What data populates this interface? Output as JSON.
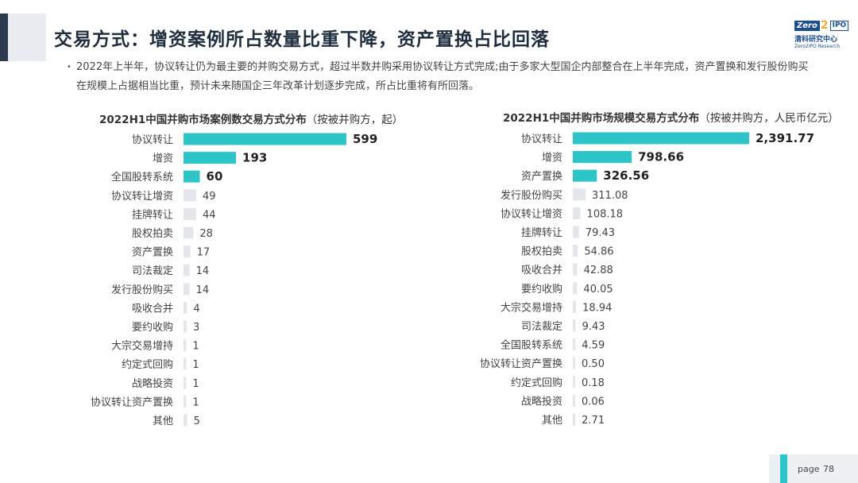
{
  "header": {
    "title": "交易方式：增资案例所占数量比重下降，资产置换占比回落",
    "logo": {
      "zero": "Zero",
      "two": "2",
      "ipo": "IPO",
      "cn": "清科研究中心",
      "en": "Zero2IPO Research"
    }
  },
  "summary": {
    "bullet": "•",
    "text": "2022年上半年，协议转让仍为最主要的并购交易方式，超过半数并购采用协议转让方式完成;由于多家大型国企内部整合在上半年完成，资产置换和发行股份购买在规模上占据相当比重，预计未来随国企三年改革计划逐步完成，所占比重将有所回落。"
  },
  "charts": {
    "left": {
      "title": "2022H1中国并购市场案例数交易方式分布",
      "subtitle": "（按被并购方，起）"
    },
    "right": {
      "title": "2022H1中国并购市场规模交易方式分布",
      "subtitle": "（按被并购方，人民币亿元）"
    }
  },
  "chart_data": [
    {
      "type": "bar",
      "orientation": "horizontal",
      "title": "2022H1中国并购市场案例数交易方式分布（按被并购方，起）",
      "categories": [
        "协议转让",
        "增资",
        "全国股转系统",
        "协议转让增资",
        "挂牌转让",
        "股权拍卖",
        "资产置换",
        "司法裁定",
        "发行股份购买",
        "吸收合并",
        "要约收购",
        "大宗交易增持",
        "约定式回购",
        "战略投资",
        "协议转让资产置换",
        "其他"
      ],
      "values": [
        599,
        193,
        60,
        49,
        44,
        28,
        17,
        14,
        14,
        4,
        3,
        1,
        1,
        1,
        1,
        5
      ],
      "value_labels": [
        "599",
        "193",
        "60",
        "49",
        "44",
        "28",
        "17",
        "14",
        "14",
        "4",
        "3",
        "1",
        "1",
        "1",
        "1",
        "5"
      ],
      "highlight_top": 3,
      "colors": {
        "highlight": "#2ec5c9",
        "default": "#e3e6ea"
      }
    },
    {
      "type": "bar",
      "orientation": "horizontal",
      "title": "2022H1中国并购市场规模交易方式分布（按被并购方，人民币亿元）",
      "categories": [
        "协议转让",
        "增资",
        "资产置换",
        "发行股份购买",
        "协议转让增资",
        "挂牌转让",
        "股权拍卖",
        "吸收合并",
        "要约收购",
        "大宗交易增持",
        "司法裁定",
        "全国股转系统",
        "协议转让资产置换",
        "约定式回购",
        "战略投资",
        "其他"
      ],
      "values": [
        2391.77,
        798.66,
        326.56,
        311.08,
        108.18,
        79.43,
        54.86,
        42.88,
        40.05,
        18.94,
        9.43,
        4.59,
        0.5,
        0.18,
        0.06,
        2.71
      ],
      "value_labels": [
        "2,391.77",
        "798.66",
        "326.56",
        "311.08",
        "108.18",
        "79.43",
        "54.86",
        "42.88",
        "40.05",
        "18.94",
        "9.43",
        "4.59",
        "0.50",
        "0.18",
        "0.06",
        "2.71"
      ],
      "highlight_top": 3,
      "colors": {
        "highlight": "#2ec5c9",
        "default": "#e3e6ea"
      }
    }
  ],
  "footer": {
    "page_label": "page",
    "page_number": "78"
  }
}
